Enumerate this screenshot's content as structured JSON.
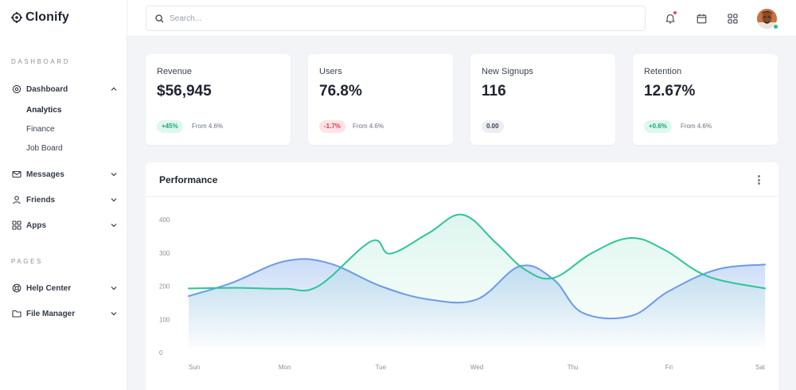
{
  "app": {
    "name": "Clonify"
  },
  "sidebar": {
    "sections": [
      {
        "title": "DASHBOARD"
      },
      {
        "title": "PAGES"
      }
    ],
    "dashboard": {
      "label": "Dashboard",
      "subitems": [
        "Analytics",
        "Finance",
        "Job Board"
      ]
    },
    "items": [
      {
        "label": "Messages",
        "icon": "mail-icon"
      },
      {
        "label": "Friends",
        "icon": "user-icon"
      },
      {
        "label": "Apps",
        "icon": "grid-icon"
      }
    ],
    "pages": [
      {
        "label": "Help Center",
        "icon": "lifebuoy-icon"
      },
      {
        "label": "File Manager",
        "icon": "folder-icon"
      }
    ]
  },
  "topbar": {
    "search_placeholder": "Search...",
    "icons": [
      "bell-icon",
      "calendar-icon",
      "apps-grid-icon"
    ],
    "user_status": "online"
  },
  "stats": [
    {
      "label": "Revenue",
      "value": "$56,945",
      "badge": "+45%",
      "trend": "up",
      "sub": "From 4.6%"
    },
    {
      "label": "Users",
      "value": "76.8%",
      "badge": "-1.7%",
      "trend": "down",
      "sub": "From 4.6%"
    },
    {
      "label": "New Signups",
      "value": "116",
      "badge": "0.00",
      "trend": "neutral",
      "sub": ""
    },
    {
      "label": "Retention",
      "value": "12.67%",
      "badge": "+0.6%",
      "trend": "up",
      "sub": "From 4.6%"
    }
  ],
  "colors": {
    "accent_blue": "#6b9be8",
    "accent_green": "#2ec598",
    "badge_up": "#1aa876",
    "badge_down": "#e0384c",
    "notification": "#f0465b"
  },
  "performance": {
    "title": "Performance"
  },
  "chart_data": {
    "type": "area",
    "title": "Performance",
    "categories": [
      "Sun",
      "Mon",
      "Tue",
      "Wed",
      "Thu",
      "Fri",
      "Sat"
    ],
    "yticks": [
      0,
      100,
      200,
      300,
      400
    ],
    "ylim": [
      0,
      400
    ],
    "grid": false,
    "legend": "none",
    "series": [
      {
        "color": "#6b9be8",
        "x": [
          0,
          0.45,
          1,
          1.45,
          2,
          2.5,
          3,
          3.45,
          3.8,
          4.1,
          4.6,
          5,
          5.5,
          6
        ],
        "values": [
          170,
          210,
          275,
          270,
          200,
          160,
          160,
          260,
          220,
          120,
          110,
          185,
          250,
          265
        ]
      },
      {
        "color": "#2ec598",
        "x": [
          0,
          0.5,
          1,
          1.35,
          1.9,
          2.1,
          2.5,
          2.85,
          3.2,
          3.5,
          3.8,
          4.2,
          4.6,
          4.95,
          5.4,
          6
        ],
        "values": [
          193,
          195,
          192,
          200,
          335,
          298,
          360,
          415,
          330,
          250,
          225,
          300,
          345,
          310,
          230,
          193
        ]
      }
    ]
  }
}
